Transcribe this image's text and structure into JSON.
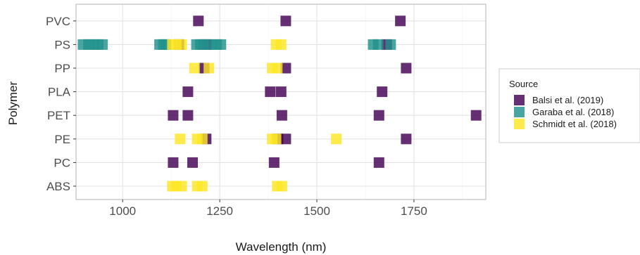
{
  "chart_data": {
    "type": "scatter",
    "xlabel": "Wavelength (nm)",
    "ylabel": "Polymer",
    "xlim": [
      880,
      1935
    ],
    "x_ticks": [
      1000,
      1250,
      1500,
      1750
    ],
    "categories": [
      "ABS",
      "PC",
      "PE",
      "PET",
      "PLA",
      "PP",
      "PS",
      "PVC"
    ],
    "grid": true,
    "legend": {
      "title": "Source",
      "position": "right"
    },
    "series": [
      {
        "name": "Balsi et al. (2019)",
        "color": "#440154",
        "points": [
          {
            "y": "PVC",
            "x": 1195
          },
          {
            "y": "PVC",
            "x": 1420
          },
          {
            "y": "PVC",
            "x": 1715
          },
          {
            "y": "PS",
            "x": 1145
          },
          {
            "y": "PS",
            "x": 1215
          },
          {
            "y": "PS",
            "x": 1680
          },
          {
            "y": "PP",
            "x": 1210
          },
          {
            "y": "PP",
            "x": 1420
          },
          {
            "y": "PP",
            "x": 1730
          },
          {
            "y": "PLA",
            "x": 1168
          },
          {
            "y": "PLA",
            "x": 1380
          },
          {
            "y": "PLA",
            "x": 1408
          },
          {
            "y": "PLA",
            "x": 1668
          },
          {
            "y": "PET",
            "x": 1130
          },
          {
            "y": "PET",
            "x": 1168
          },
          {
            "y": "PET",
            "x": 1410
          },
          {
            "y": "PET",
            "x": 1660
          },
          {
            "y": "PET",
            "x": 1910
          },
          {
            "y": "PE",
            "x": 1215
          },
          {
            "y": "PE",
            "x": 1400
          },
          {
            "y": "PE",
            "x": 1420
          },
          {
            "y": "PE",
            "x": 1730
          },
          {
            "y": "PC",
            "x": 1130
          },
          {
            "y": "PC",
            "x": 1180
          },
          {
            "y": "PC",
            "x": 1390
          },
          {
            "y": "PC",
            "x": 1660
          }
        ]
      },
      {
        "name": "Garaba et al. (2018)",
        "color": "#21918c",
        "points": [
          {
            "y": "PS",
            "x": 898
          },
          {
            "y": "PS",
            "x": 912
          },
          {
            "y": "PS",
            "x": 925
          },
          {
            "y": "PS",
            "x": 937
          },
          {
            "y": "PS",
            "x": 948
          },
          {
            "y": "PS",
            "x": 1095
          },
          {
            "y": "PS",
            "x": 1105
          },
          {
            "y": "PS",
            "x": 1112
          },
          {
            "y": "PS",
            "x": 1190
          },
          {
            "y": "PS",
            "x": 1200
          },
          {
            "y": "PS",
            "x": 1208
          },
          {
            "y": "PS",
            "x": 1228
          },
          {
            "y": "PS",
            "x": 1242
          },
          {
            "y": "PS",
            "x": 1253
          },
          {
            "y": "PS",
            "x": 1645
          },
          {
            "y": "PS",
            "x": 1658
          },
          {
            "y": "PS",
            "x": 1690
          }
        ]
      },
      {
        "name": "Schmidt et al. (2018)",
        "color": "#fde725",
        "points": [
          {
            "y": "PS",
            "x": 1128
          },
          {
            "y": "PS",
            "x": 1138
          },
          {
            "y": "PS",
            "x": 1152
          },
          {
            "y": "PS",
            "x": 1395
          },
          {
            "y": "PS",
            "x": 1408
          },
          {
            "y": "PP",
            "x": 1185
          },
          {
            "y": "PP",
            "x": 1222
          },
          {
            "y": "PP",
            "x": 1385
          },
          {
            "y": "PP",
            "x": 1398
          },
          {
            "y": "PE",
            "x": 1148
          },
          {
            "y": "PE",
            "x": 1192
          },
          {
            "y": "PE",
            "x": 1205
          },
          {
            "y": "PE",
            "x": 1385
          },
          {
            "y": "PE",
            "x": 1395
          },
          {
            "y": "PE",
            "x": 1550
          },
          {
            "y": "ABS",
            "x": 1128
          },
          {
            "y": "ABS",
            "x": 1138
          },
          {
            "y": "ABS",
            "x": 1152
          },
          {
            "y": "ABS",
            "x": 1192
          },
          {
            "y": "ABS",
            "x": 1205
          },
          {
            "y": "ABS",
            "x": 1398
          },
          {
            "y": "ABS",
            "x": 1410
          }
        ]
      }
    ]
  }
}
